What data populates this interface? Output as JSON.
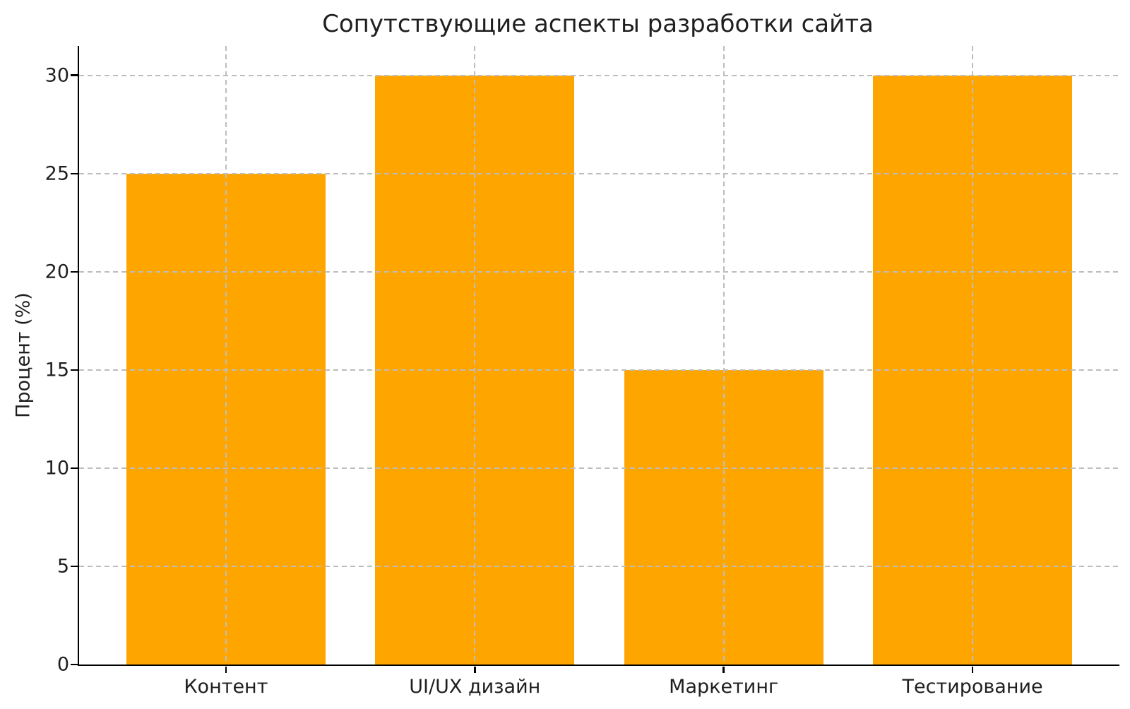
{
  "title": "Сопутствующие аспекты разработки сайта",
  "colors": {
    "bar": "#FFA500",
    "grid": "#bdbdbd",
    "axis": "#000000",
    "text": "#1f1f1f",
    "background": "#ffffff"
  },
  "chart_data": {
    "type": "bar",
    "title": "Сопутствующие аспекты разработки сайта",
    "categories": [
      "Контент",
      "UI/UX дизайн",
      "Маркетинг",
      "Тестирование"
    ],
    "values": [
      25,
      30,
      15,
      30
    ],
    "xlabel": "",
    "ylabel": "Процент (%)",
    "ylim": [
      0,
      31.5
    ],
    "yticks": [
      0,
      5,
      10,
      15,
      20,
      25,
      30
    ],
    "bar_color": "#FFA500",
    "grid": "dashed horizontal lines at yticks and dashed vertical lines at category centers, drawn above bars",
    "legend": "none"
  }
}
